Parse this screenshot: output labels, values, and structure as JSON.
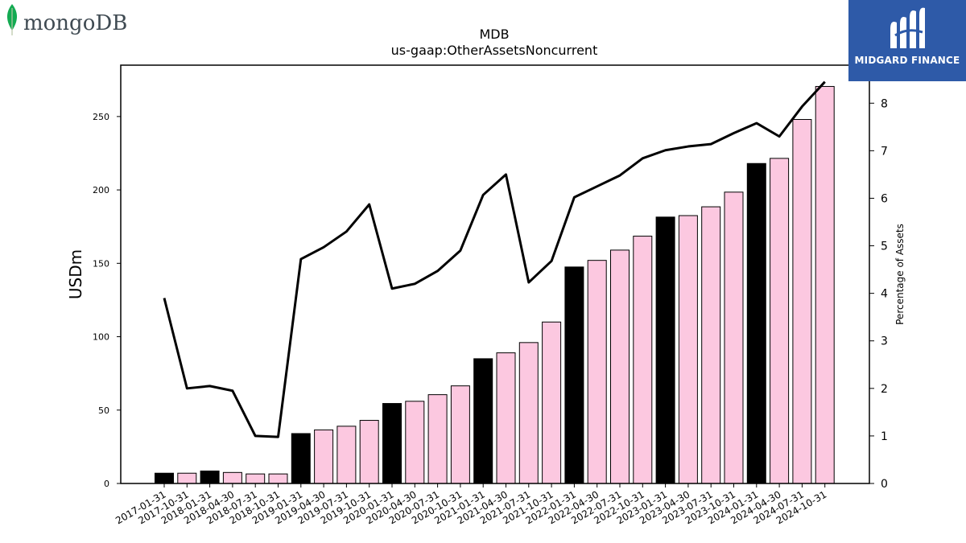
{
  "header": {
    "left_logo_text": "mongoDB",
    "left_logo_mark": ".",
    "right_logo_text": "MIDGARD FINANCE"
  },
  "chart_data": {
    "type": "bar",
    "title": "MDB",
    "subtitle": "us-gaap:OtherAssetsNoncurrent",
    "ylabel": "USDm",
    "y2label": "Percentage of Assets",
    "ylim": [
      0,
      285
    ],
    "y2lim": [
      0,
      8.8
    ],
    "yticks": [
      0,
      50,
      100,
      150,
      200,
      250
    ],
    "y2ticks": [
      0,
      1,
      2,
      3,
      4,
      5,
      6,
      7,
      8
    ],
    "categories": [
      "2017-01-31",
      "2017-10-31",
      "2018-01-31",
      "2018-04-30",
      "2018-07-31",
      "2018-10-31",
      "2019-01-31",
      "2019-04-30",
      "2019-07-31",
      "2019-10-31",
      "2020-01-31",
      "2020-04-30",
      "2020-07-31",
      "2020-10-31",
      "2021-01-31",
      "2021-04-30",
      "2021-07-31",
      "2021-10-31",
      "2022-01-31",
      "2022-04-30",
      "2022-07-31",
      "2022-10-31",
      "2023-01-31",
      "2023-04-30",
      "2023-07-31",
      "2023-10-31",
      "2024-01-31",
      "2024-04-30",
      "2024-07-31",
      "2024-10-31"
    ],
    "series": [
      {
        "type": "bar",
        "values": [
          7,
          7,
          8.5,
          7.5,
          6.5,
          6.5,
          34,
          36.5,
          39,
          43,
          54.5,
          56,
          60.5,
          66.5,
          85,
          89,
          96,
          110,
          147.5,
          152,
          159,
          168.5,
          181.5,
          182.5,
          188.5,
          198.5,
          218,
          221.5,
          248,
          270.5
        ],
        "color_annual": "#000000",
        "color_quarter": "#fcc8e0",
        "annual_flags": [
          1,
          0,
          1,
          0,
          0,
          0,
          1,
          0,
          0,
          0,
          1,
          0,
          0,
          0,
          1,
          0,
          0,
          0,
          1,
          0,
          0,
          0,
          1,
          0,
          0,
          0,
          1,
          0,
          0,
          0
        ]
      },
      {
        "type": "line",
        "axis": "right",
        "values": [
          3.9,
          2.0,
          2.05,
          1.95,
          1.0,
          0.98,
          4.72,
          4.97,
          5.3,
          5.87,
          4.1,
          4.2,
          4.47,
          4.9,
          6.07,
          6.5,
          4.23,
          4.68,
          6.02,
          6.25,
          6.48,
          6.84,
          7.01,
          7.09,
          7.14,
          7.37,
          7.58,
          7.3,
          7.93,
          8.45
        ],
        "color": "#000000"
      }
    ],
    "grid": false,
    "legend": "none"
  }
}
